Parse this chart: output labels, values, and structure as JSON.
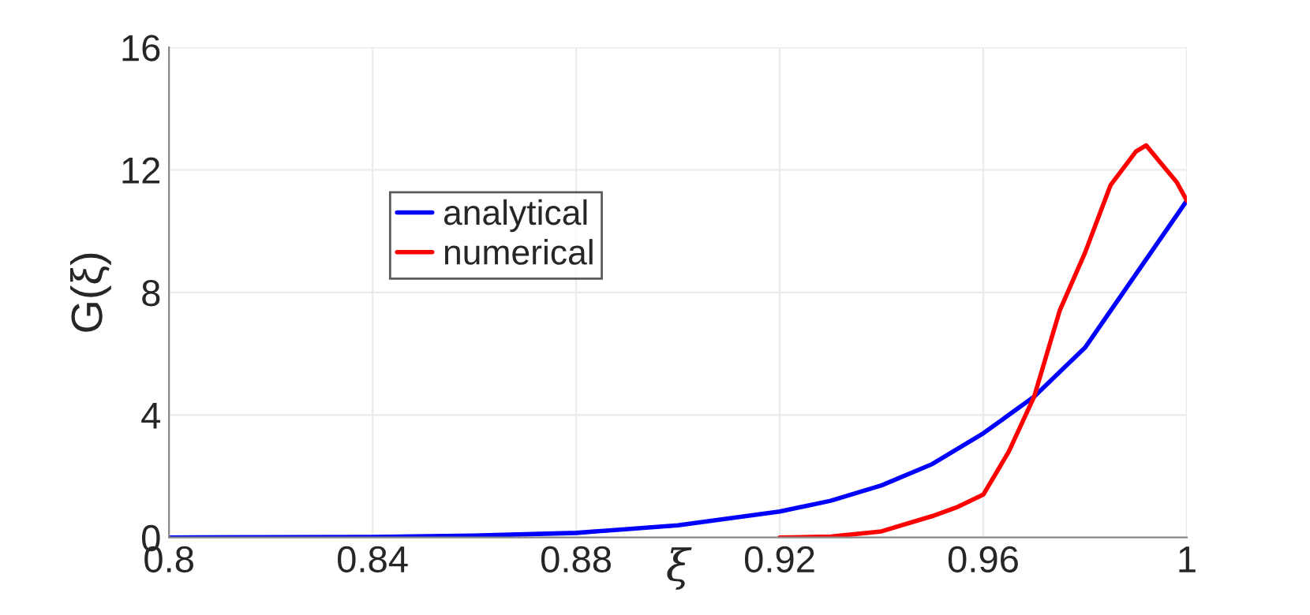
{
  "chart_data": {
    "type": "line",
    "xlabel": "ξ",
    "ylabel": "G(ξ)",
    "xlim": [
      0.8,
      1
    ],
    "xticks": [
      0.8,
      0.84,
      0.88,
      0.92,
      0.96,
      1
    ],
    "ylim": [
      0,
      16
    ],
    "yticks": [
      0,
      4,
      8,
      12,
      16
    ],
    "grid": true,
    "legend": "top left",
    "line_style": "solid",
    "marker": "none",
    "series": [
      {
        "name": "analytical",
        "color": "#0000ff",
        "x": [
          0.8,
          0.84,
          0.86,
          0.88,
          0.9,
          0.92,
          0.93,
          0.94,
          0.95,
          0.96,
          0.97,
          0.98,
          0.99,
          1.0
        ],
        "values": [
          0,
          0.02,
          0.06,
          0.15,
          0.4,
          0.85,
          1.2,
          1.7,
          2.4,
          3.4,
          4.6,
          6.2,
          8.6,
          11
        ]
      },
      {
        "name": "numerical",
        "color": "#ff0000",
        "x": [
          0.92,
          0.93,
          0.94,
          0.95,
          0.955,
          0.96,
          0.965,
          0.97,
          0.975,
          0.98,
          0.985,
          0.99,
          0.992,
          0.995,
          0.998,
          1.0
        ],
        "values": [
          0,
          0.03,
          0.2,
          0.7,
          1.0,
          1.4,
          2.8,
          4.6,
          7.4,
          9.3,
          11.5,
          12.6,
          12.8,
          12.2,
          11.6,
          11
        ]
      }
    ]
  }
}
